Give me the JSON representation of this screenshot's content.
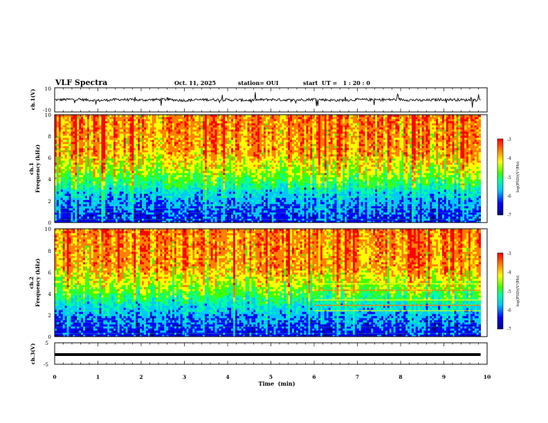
{
  "header": {
    "title": "VLF Spectra",
    "date": "Oct. 11, 2025",
    "station": "station= OUI",
    "start": "start  UT =   1 : 20 : 0"
  },
  "colors": {
    "spectrum_scale": [
      "#00008b",
      "#0000ff",
      "#00c8ff",
      "#00ffa0",
      "#40ff00",
      "#ffff00",
      "#ff8000",
      "#ff0000"
    ],
    "trace": "#000000",
    "frame": "#000000"
  },
  "chart_data": [
    {
      "type": "line",
      "name": "ch1-waveform",
      "ylabel": "ch.1(V)",
      "ylim": [
        -10,
        10
      ],
      "yticks": [
        "10",
        "-10"
      ],
      "xlim": [
        0,
        9.85
      ],
      "x_sampled": [
        0,
        0.5,
        1,
        1.5,
        2,
        2.5,
        3,
        3.5,
        4,
        4.5,
        5,
        5.5,
        6,
        6.5,
        7,
        7.5,
        8,
        8.5,
        9,
        9.5,
        9.85
      ],
      "y_sampled": [
        0,
        0.5,
        -0.5,
        0.3,
        -0.2,
        0.4,
        -0.4,
        0.2,
        0,
        -0.3,
        0.3,
        -0.2,
        0.5,
        -0.4,
        0.2,
        0,
        0.3,
        -0.5,
        0.4,
        -0.1,
        0
      ]
    },
    {
      "type": "heatmap",
      "name": "ch1-spectrogram",
      "ylabel": [
        "ch.1",
        "Frequency  (kHz)"
      ],
      "ylim": [
        0,
        10
      ],
      "yticks": [
        "0",
        "2",
        "4",
        "6",
        "8",
        "10"
      ],
      "xlim": [
        0,
        9.85
      ],
      "freq_bands_khz": [
        0,
        1,
        2,
        3,
        3.5,
        4.5,
        5.5,
        6.5,
        10
      ],
      "typical_log_psd": [
        -6.5,
        -6.3,
        -6.0,
        -5.6,
        -5.2,
        -4.6,
        -4.2,
        -3.8,
        -3.6
      ],
      "colorbar": {
        "label": "log(PSD)(V²/Hz)",
        "range": [
          -7,
          -3
        ],
        "ticks": [
          "-3",
          "-4",
          "-5",
          "-6",
          "-7"
        ]
      }
    },
    {
      "type": "heatmap",
      "name": "ch2-spectrogram",
      "ylabel": [
        "ch.2",
        "Frequency  (kHz)"
      ],
      "ylim": [
        0,
        10
      ],
      "yticks": [
        "0",
        "2",
        "4",
        "6",
        "8",
        "10"
      ],
      "xlim": [
        0,
        9.85
      ],
      "freq_bands_khz": [
        0,
        1,
        2,
        3,
        3.5,
        4.5,
        5.5,
        6.5,
        10
      ],
      "typical_log_psd": [
        -6.5,
        -6.3,
        -6.0,
        -5.6,
        -5.2,
        -4.6,
        -4.2,
        -3.8,
        -3.6
      ],
      "narrowband_lines_after_min": 6.0,
      "narrowband_lines_khz": [
        2.4,
        2.9,
        3.4,
        4.3,
        4.9
      ],
      "colorbar": {
        "label": "log(PSD)(V²/Hz)",
        "range": [
          -7,
          -3
        ],
        "ticks": [
          "-3",
          "-4",
          "-5",
          "-6",
          "-7"
        ]
      }
    },
    {
      "type": "line",
      "name": "ch3-waveform",
      "ylabel": "ch.3(V)",
      "ylim": [
        -5,
        5
      ],
      "yticks": [
        "5",
        "-5"
      ],
      "xlim": [
        0,
        9.85
      ],
      "x": [
        0,
        9.85
      ],
      "y": [
        -0.5,
        -0.5
      ]
    }
  ],
  "time_axis": {
    "label": "Time  (min)",
    "range": [
      0,
      10
    ],
    "ticks": [
      "0",
      "1",
      "2",
      "3",
      "4",
      "5",
      "6",
      "7",
      "8",
      "9",
      "10"
    ]
  }
}
